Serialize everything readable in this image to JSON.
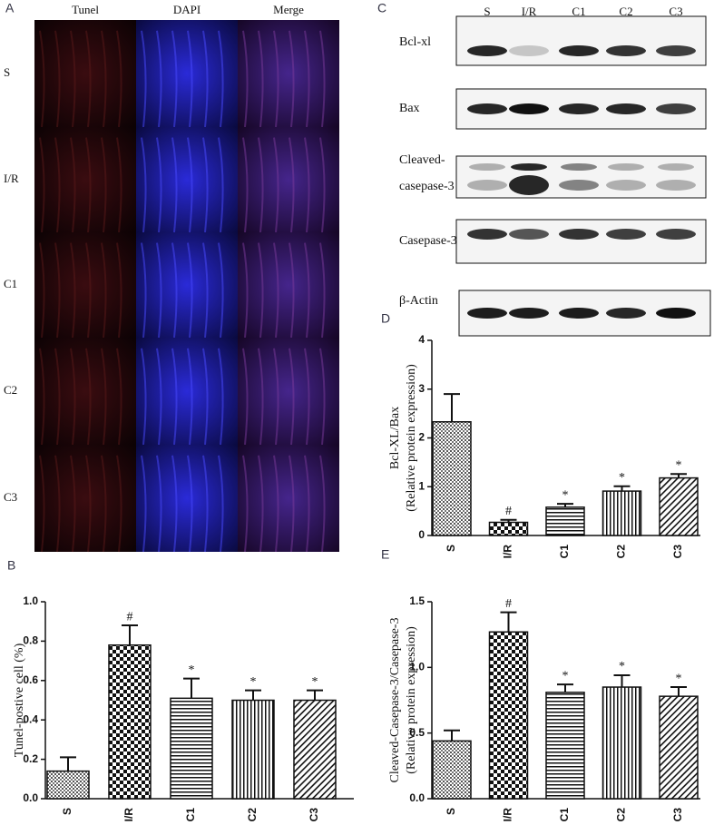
{
  "panel_a": {
    "label": "A",
    "columns": [
      "Tunel",
      "DAPI",
      "Merge"
    ],
    "rows": [
      "S",
      "I/R",
      "C1",
      "C2",
      "C3"
    ]
  },
  "panel_c": {
    "label": "C",
    "lanes": [
      "S",
      "I/R",
      "C1",
      "C2",
      "C3"
    ],
    "proteins": [
      [
        "Bcl-xl"
      ],
      [
        "Bax"
      ],
      [
        "Cleaved-",
        "casepase-3"
      ],
      [
        "Casepase-3"
      ],
      [
        "β-Actin"
      ]
    ]
  },
  "chart_data": [
    {
      "type": "bar",
      "panel": "B",
      "ylabel": [
        "Tunel-postive cell (%)"
      ],
      "categories": [
        "S",
        "I/R",
        "C1",
        "C2",
        "C3"
      ],
      "values": [
        0.14,
        0.78,
        0.51,
        0.5,
        0.5
      ],
      "errors": [
        0.07,
        0.1,
        0.1,
        0.05,
        0.05
      ],
      "markers": [
        null,
        "#",
        "*",
        "*",
        "*"
      ],
      "ylim": [
        0,
        1
      ],
      "yticks": [
        {
          "value": 0,
          "label": "0.0"
        },
        0.2,
        0.4,
        0.6,
        0.8,
        {
          "value": 1,
          "label": "1.0"
        }
      ]
    },
    {
      "type": "bar",
      "panel": "D",
      "ylabel": [
        "Bcl-XL/Bax",
        "(Relative protein expression)"
      ],
      "categories": [
        "S",
        "I/R",
        "C1",
        "C2",
        "C3"
      ],
      "values": [
        2.33,
        0.27,
        0.58,
        0.91,
        1.18
      ],
      "errors": [
        0.57,
        0.05,
        0.07,
        0.1,
        0.08
      ],
      "markers": [
        null,
        "#",
        "*",
        "*",
        "*"
      ],
      "ylim": [
        0,
        4
      ],
      "yticks": [
        0,
        1,
        2,
        3,
        4
      ]
    },
    {
      "type": "bar",
      "panel": "E",
      "ylabel": [
        "Cleaved-Casepase-3/Casepase-3",
        "(Relative protein expression)"
      ],
      "categories": [
        "S",
        "I/R",
        "C1",
        "C2",
        "C3"
      ],
      "values": [
        0.44,
        1.27,
        0.81,
        0.85,
        0.78
      ],
      "errors": [
        0.08,
        0.15,
        0.06,
        0.09,
        0.07
      ],
      "markers": [
        null,
        "#",
        "*",
        "*",
        "*"
      ],
      "ylim": [
        0,
        1.5
      ],
      "yticks": [
        {
          "value": 0,
          "label": "0.0"
        },
        0.5,
        {
          "value": 1,
          "label": "1.0"
        },
        1.5
      ]
    }
  ]
}
